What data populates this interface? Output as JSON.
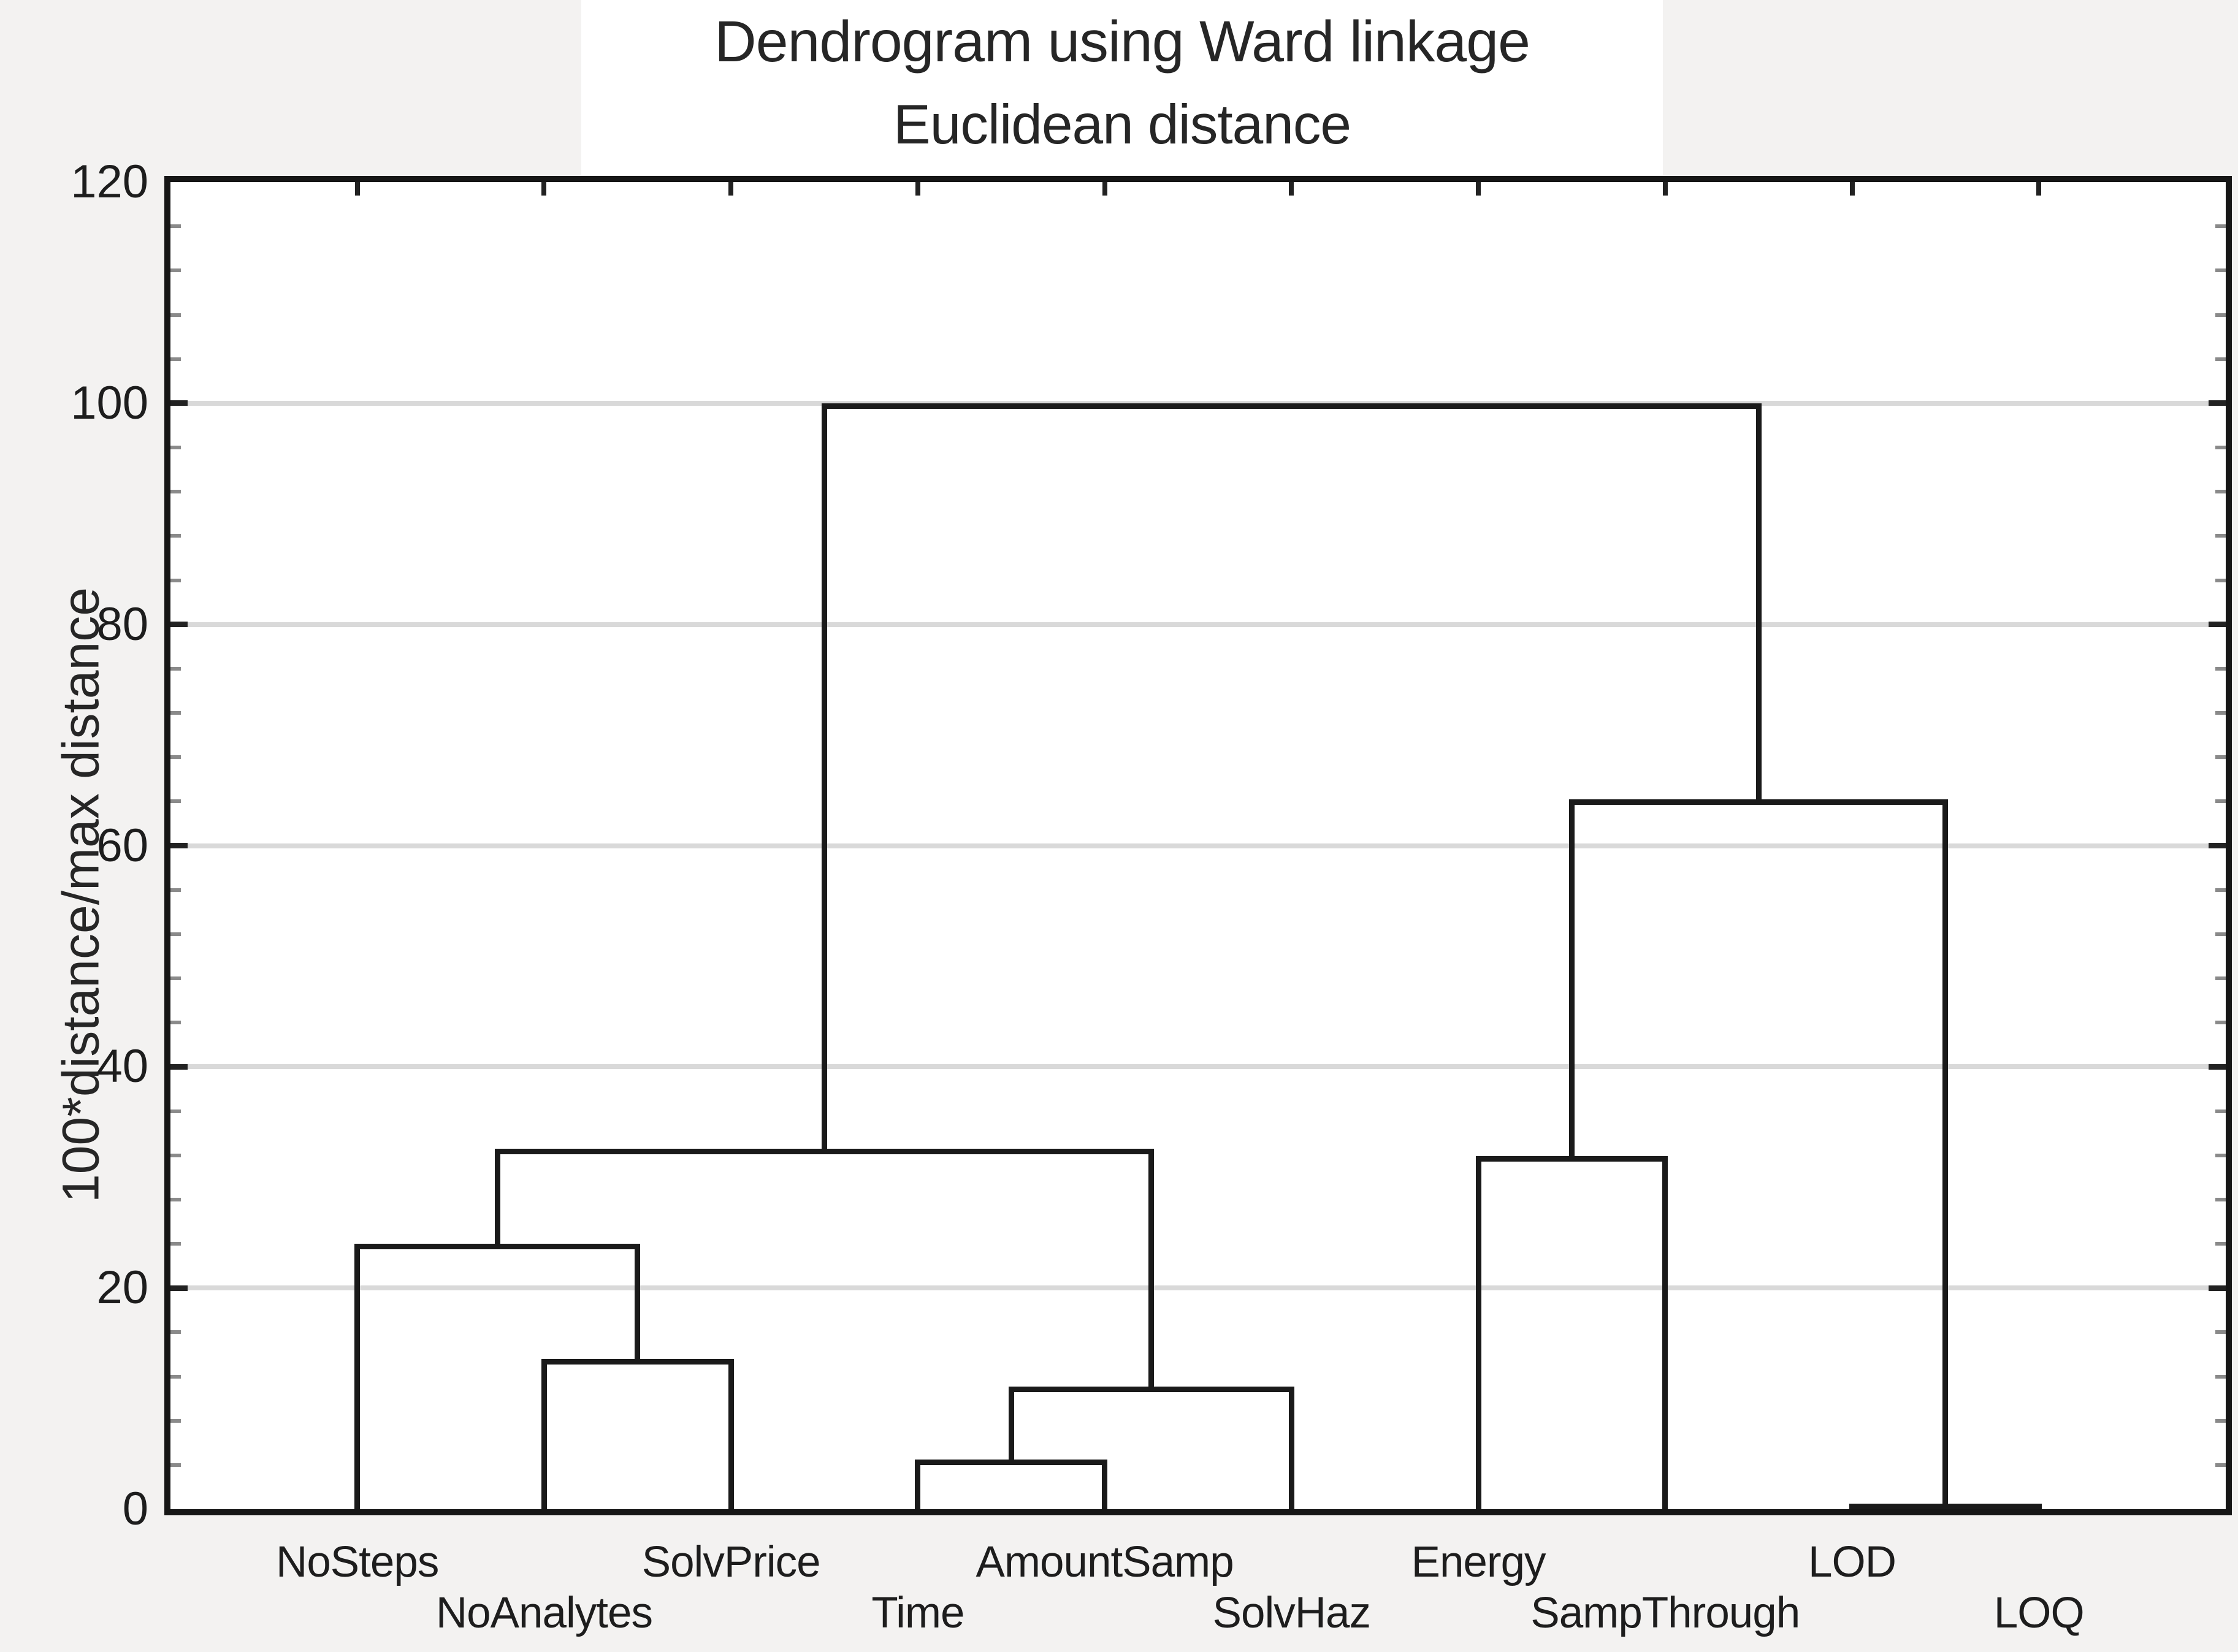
{
  "figure": {
    "background_color": "#f3f2f1",
    "plot_background_color": "#ffffff",
    "line_color": "#1a1a1a",
    "gridline_color": "#d9d9d9",
    "minor_tick_color": "#8a8a8a",
    "text_color": "#1d1d1d"
  },
  "chart_data": {
    "type": "dendrogram",
    "title": "Dendrogram using Ward linkage",
    "subtitle": "Euclidean distance",
    "ylabel": "100*distance/max distance",
    "ylim": [
      0,
      120
    ],
    "ytick_step": 20,
    "ytick_labels": [
      "0",
      "20",
      "40",
      "60",
      "80",
      "100",
      "120"
    ],
    "minor_tick_step": 4,
    "grid": "horizontal gridlines at major ticks",
    "legend": "none",
    "leaves": [
      {
        "label": "NoSteps",
        "row": 1
      },
      {
        "label": "NoAnalytes",
        "row": 2
      },
      {
        "label": "SolvPrice",
        "row": 1
      },
      {
        "label": "Time",
        "row": 2
      },
      {
        "label": "AmountSamp",
        "row": 1
      },
      {
        "label": "SolvHaz",
        "row": 2
      },
      {
        "label": "Energy",
        "row": 1
      },
      {
        "label": "SampThrough",
        "row": 2
      },
      {
        "label": "LOD",
        "row": 1
      },
      {
        "label": "LOQ",
        "row": 2
      }
    ],
    "merges": [
      {
        "id": "A",
        "a": "NoAnalytes",
        "b": "SolvPrice",
        "height": 13.6
      },
      {
        "id": "B",
        "a": "NoSteps",
        "b": "A",
        "height": 24.0
      },
      {
        "id": "C",
        "a": "Time",
        "b": "AmountSamp",
        "height": 4.5
      },
      {
        "id": "D",
        "a": "C",
        "b": "SolvHaz",
        "height": 11.1
      },
      {
        "id": "E",
        "a": "B",
        "b": "D",
        "height": 32.6
      },
      {
        "id": "F",
        "a": "Energy",
        "b": "SampThrough",
        "height": 31.9
      },
      {
        "id": "G",
        "a": "LOD",
        "b": "LOQ",
        "height": 0.5
      },
      {
        "id": "H",
        "a": "F",
        "b": "G",
        "height": 64.2
      },
      {
        "id": "I",
        "a": "E",
        "b": "H",
        "height": 100.0
      }
    ]
  }
}
